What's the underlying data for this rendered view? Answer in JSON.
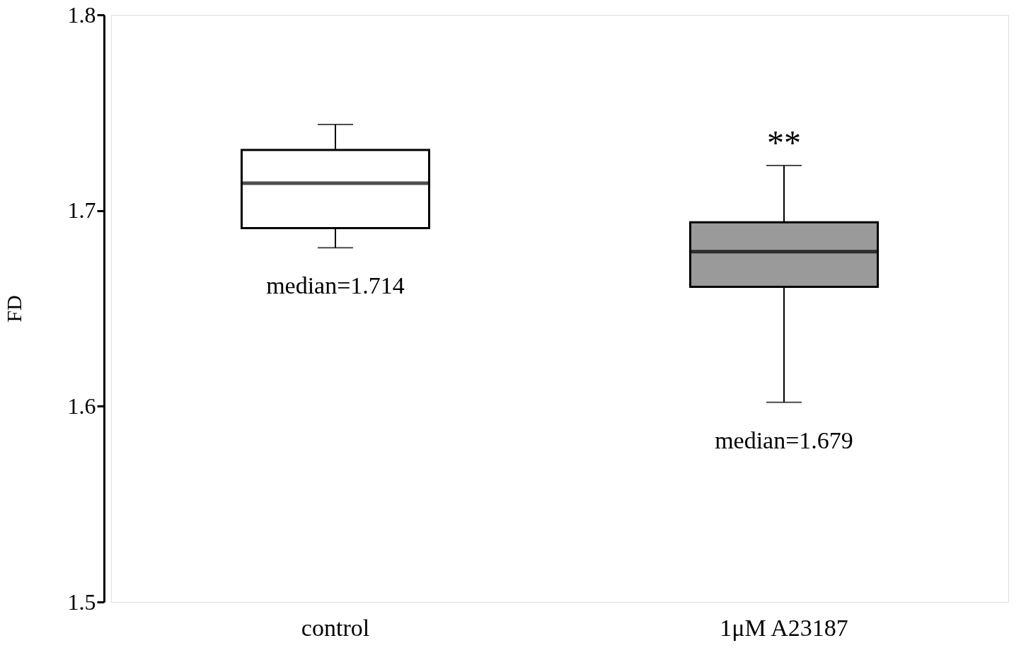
{
  "chart_data": {
    "type": "box",
    "ylabel": "FD",
    "categories": [
      "control",
      "1μM A23187"
    ],
    "colors": [
      "#ffffff",
      "#9a9a9a"
    ],
    "boxes": [
      {
        "low": 1.681,
        "q1": 1.691,
        "median": 1.714,
        "q3": 1.731,
        "high": 1.744
      },
      {
        "low": 1.602,
        "q1": 1.661,
        "median": 1.679,
        "q3": 1.694,
        "high": 1.723
      }
    ],
    "ylim": [
      1.5,
      1.8
    ],
    "yticks": [
      1.5,
      1.6,
      1.7,
      1.8
    ],
    "grid": false,
    "annotations": [
      "median=1.714",
      "median=1.679",
      "**"
    ]
  }
}
